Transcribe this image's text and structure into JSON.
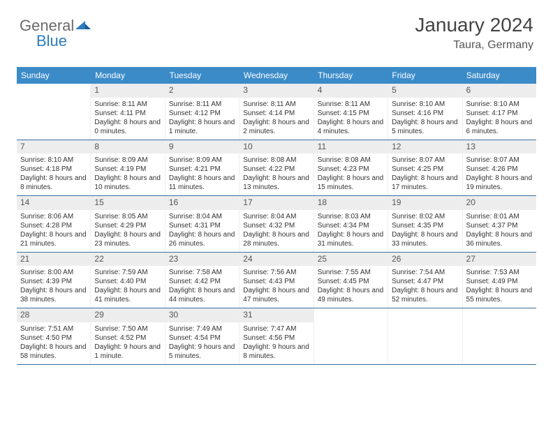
{
  "logo": {
    "text1": "General",
    "text2": "Blue"
  },
  "title": "January 2024",
  "location": "Taura, Germany",
  "weekday_headers": [
    "Sunday",
    "Monday",
    "Tuesday",
    "Wednesday",
    "Thursday",
    "Friday",
    "Saturday"
  ],
  "colors": {
    "header_bg": "#3b8bc9",
    "header_text": "#ffffff",
    "daynum_bg": "#ededed",
    "week_border": "#3b6fa0",
    "logo_gray": "#6b6b6b",
    "logo_blue": "#2b7bbf"
  },
  "typography": {
    "title_fontsize_pt": 21,
    "location_fontsize_pt": 12,
    "header_fontsize_pt": 9,
    "daynum_fontsize_pt": 9,
    "cell_fontsize_pt": 7.5
  },
  "weeks": [
    [
      {
        "day": "",
        "sunrise": "",
        "sunset": "",
        "daylight": ""
      },
      {
        "day": "1",
        "sunrise": "Sunrise: 8:11 AM",
        "sunset": "Sunset: 4:11 PM",
        "daylight": "Daylight: 8 hours and 0 minutes."
      },
      {
        "day": "2",
        "sunrise": "Sunrise: 8:11 AM",
        "sunset": "Sunset: 4:12 PM",
        "daylight": "Daylight: 8 hours and 1 minute."
      },
      {
        "day": "3",
        "sunrise": "Sunrise: 8:11 AM",
        "sunset": "Sunset: 4:14 PM",
        "daylight": "Daylight: 8 hours and 2 minutes."
      },
      {
        "day": "4",
        "sunrise": "Sunrise: 8:11 AM",
        "sunset": "Sunset: 4:15 PM",
        "daylight": "Daylight: 8 hours and 4 minutes."
      },
      {
        "day": "5",
        "sunrise": "Sunrise: 8:10 AM",
        "sunset": "Sunset: 4:16 PM",
        "daylight": "Daylight: 8 hours and 5 minutes."
      },
      {
        "day": "6",
        "sunrise": "Sunrise: 8:10 AM",
        "sunset": "Sunset: 4:17 PM",
        "daylight": "Daylight: 8 hours and 6 minutes."
      }
    ],
    [
      {
        "day": "7",
        "sunrise": "Sunrise: 8:10 AM",
        "sunset": "Sunset: 4:18 PM",
        "daylight": "Daylight: 8 hours and 8 minutes."
      },
      {
        "day": "8",
        "sunrise": "Sunrise: 8:09 AM",
        "sunset": "Sunset: 4:19 PM",
        "daylight": "Daylight: 8 hours and 10 minutes."
      },
      {
        "day": "9",
        "sunrise": "Sunrise: 8:09 AM",
        "sunset": "Sunset: 4:21 PM",
        "daylight": "Daylight: 8 hours and 11 minutes."
      },
      {
        "day": "10",
        "sunrise": "Sunrise: 8:08 AM",
        "sunset": "Sunset: 4:22 PM",
        "daylight": "Daylight: 8 hours and 13 minutes."
      },
      {
        "day": "11",
        "sunrise": "Sunrise: 8:08 AM",
        "sunset": "Sunset: 4:23 PM",
        "daylight": "Daylight: 8 hours and 15 minutes."
      },
      {
        "day": "12",
        "sunrise": "Sunrise: 8:07 AM",
        "sunset": "Sunset: 4:25 PM",
        "daylight": "Daylight: 8 hours and 17 minutes."
      },
      {
        "day": "13",
        "sunrise": "Sunrise: 8:07 AM",
        "sunset": "Sunset: 4:26 PM",
        "daylight": "Daylight: 8 hours and 19 minutes."
      }
    ],
    [
      {
        "day": "14",
        "sunrise": "Sunrise: 8:06 AM",
        "sunset": "Sunset: 4:28 PM",
        "daylight": "Daylight: 8 hours and 21 minutes."
      },
      {
        "day": "15",
        "sunrise": "Sunrise: 8:05 AM",
        "sunset": "Sunset: 4:29 PM",
        "daylight": "Daylight: 8 hours and 23 minutes."
      },
      {
        "day": "16",
        "sunrise": "Sunrise: 8:04 AM",
        "sunset": "Sunset: 4:31 PM",
        "daylight": "Daylight: 8 hours and 26 minutes."
      },
      {
        "day": "17",
        "sunrise": "Sunrise: 8:04 AM",
        "sunset": "Sunset: 4:32 PM",
        "daylight": "Daylight: 8 hours and 28 minutes."
      },
      {
        "day": "18",
        "sunrise": "Sunrise: 8:03 AM",
        "sunset": "Sunset: 4:34 PM",
        "daylight": "Daylight: 8 hours and 31 minutes."
      },
      {
        "day": "19",
        "sunrise": "Sunrise: 8:02 AM",
        "sunset": "Sunset: 4:35 PM",
        "daylight": "Daylight: 8 hours and 33 minutes."
      },
      {
        "day": "20",
        "sunrise": "Sunrise: 8:01 AM",
        "sunset": "Sunset: 4:37 PM",
        "daylight": "Daylight: 8 hours and 36 minutes."
      }
    ],
    [
      {
        "day": "21",
        "sunrise": "Sunrise: 8:00 AM",
        "sunset": "Sunset: 4:39 PM",
        "daylight": "Daylight: 8 hours and 38 minutes."
      },
      {
        "day": "22",
        "sunrise": "Sunrise: 7:59 AM",
        "sunset": "Sunset: 4:40 PM",
        "daylight": "Daylight: 8 hours and 41 minutes."
      },
      {
        "day": "23",
        "sunrise": "Sunrise: 7:58 AM",
        "sunset": "Sunset: 4:42 PM",
        "daylight": "Daylight: 8 hours and 44 minutes."
      },
      {
        "day": "24",
        "sunrise": "Sunrise: 7:56 AM",
        "sunset": "Sunset: 4:43 PM",
        "daylight": "Daylight: 8 hours and 47 minutes."
      },
      {
        "day": "25",
        "sunrise": "Sunrise: 7:55 AM",
        "sunset": "Sunset: 4:45 PM",
        "daylight": "Daylight: 8 hours and 49 minutes."
      },
      {
        "day": "26",
        "sunrise": "Sunrise: 7:54 AM",
        "sunset": "Sunset: 4:47 PM",
        "daylight": "Daylight: 8 hours and 52 minutes."
      },
      {
        "day": "27",
        "sunrise": "Sunrise: 7:53 AM",
        "sunset": "Sunset: 4:49 PM",
        "daylight": "Daylight: 8 hours and 55 minutes."
      }
    ],
    [
      {
        "day": "28",
        "sunrise": "Sunrise: 7:51 AM",
        "sunset": "Sunset: 4:50 PM",
        "daylight": "Daylight: 8 hours and 58 minutes."
      },
      {
        "day": "29",
        "sunrise": "Sunrise: 7:50 AM",
        "sunset": "Sunset: 4:52 PM",
        "daylight": "Daylight: 9 hours and 1 minute."
      },
      {
        "day": "30",
        "sunrise": "Sunrise: 7:49 AM",
        "sunset": "Sunset: 4:54 PM",
        "daylight": "Daylight: 9 hours and 5 minutes."
      },
      {
        "day": "31",
        "sunrise": "Sunrise: 7:47 AM",
        "sunset": "Sunset: 4:56 PM",
        "daylight": "Daylight: 9 hours and 8 minutes."
      },
      {
        "day": "",
        "sunrise": "",
        "sunset": "",
        "daylight": ""
      },
      {
        "day": "",
        "sunrise": "",
        "sunset": "",
        "daylight": ""
      },
      {
        "day": "",
        "sunrise": "",
        "sunset": "",
        "daylight": ""
      }
    ]
  ]
}
